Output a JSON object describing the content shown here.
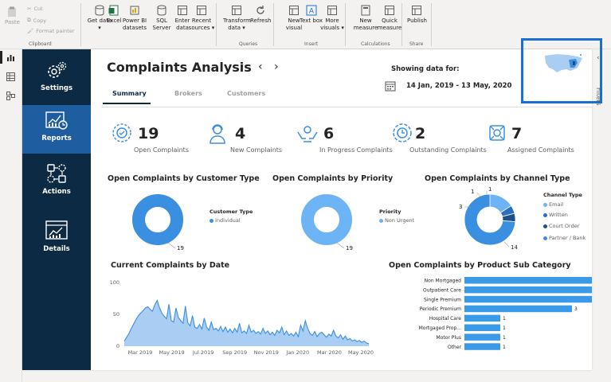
{
  "ribbon": {
    "clipboard": {
      "paste": "Paste",
      "cut": "Cut",
      "copy": "Copy",
      "format_painter": "Format painter",
      "group": "Clipboard"
    },
    "data_buttons": [
      {
        "label": "Get data ▾",
        "icon": "database-icon"
      },
      {
        "label": "Excel",
        "icon": "excel-icon"
      },
      {
        "label": "Power BI datasets",
        "icon": "powerbi-datasets-icon"
      },
      {
        "label": "SQL Server",
        "icon": "sql-server-icon"
      },
      {
        "label": "Enter data",
        "icon": "table-icon"
      },
      {
        "label": "Recent sources ▾",
        "icon": "recent-sources-icon"
      }
    ],
    "queries_buttons": [
      {
        "label": "Transform data ▾",
        "icon": "transform-icon"
      },
      {
        "label": "Refresh",
        "icon": "refresh-icon"
      }
    ],
    "queries_group": "Queries",
    "insert_buttons": [
      {
        "label": "New visual",
        "icon": "new-visual-icon"
      },
      {
        "label": "Text box",
        "icon": "text-box-icon"
      },
      {
        "label": "More visuals ▾",
        "icon": "more-visuals-icon"
      }
    ],
    "insert_group": "Insert",
    "calc_buttons": [
      {
        "label": "New measure",
        "icon": "calculator-icon"
      },
      {
        "label": "Quick measure",
        "icon": "quick-measure-icon"
      }
    ],
    "calc_group": "Calculations",
    "share_buttons": [
      {
        "label": "Publish",
        "icon": "publish-icon"
      }
    ],
    "share_group": "Share"
  },
  "right_rail": {
    "filters": "Filters"
  },
  "sidebar": {
    "items": [
      {
        "label": "Settings",
        "icon": "gears-icon"
      },
      {
        "label": "Reports",
        "icon": "report-chart-icon"
      },
      {
        "label": "Actions",
        "icon": "actions-icon"
      },
      {
        "label": "Details",
        "icon": "details-icon"
      }
    ]
  },
  "header": {
    "title": "Complaints Analysis",
    "tabs": [
      "Summary",
      "Brokers",
      "Customers"
    ],
    "showing_label": "Showing data for:",
    "date_range": "14 Jan, 2019 - 13 May, 2020"
  },
  "kpis": [
    {
      "value": "19",
      "label": "Open Complaints",
      "icon": "open-complaints-icon"
    },
    {
      "value": "4",
      "label": "New Complaints",
      "icon": "person-headset-icon"
    },
    {
      "value": "6",
      "label": "In Progress Complaints",
      "icon": "hands-icon"
    },
    {
      "value": "2",
      "label": "Outstanding Complaints",
      "icon": "clock-cycle-icon"
    },
    {
      "value": "7",
      "label": "Assigned Complaints",
      "icon": "assigned-icon"
    }
  ],
  "colors": {
    "accent": "#3b8fe0",
    "navy": "#0d2a45",
    "active_nav": "#1f5da1",
    "dark_blue": "#1c4f8c",
    "mid_blue": "#2a6fc0",
    "bar": "#3b9ae8"
  },
  "chart_data": [
    {
      "type": "pie",
      "title": "Open Complaints by Customer Type",
      "legend_title": "Customer Type",
      "labels": [
        "Individual"
      ],
      "values": [
        19
      ],
      "data_labels": [
        "19"
      ]
    },
    {
      "type": "pie",
      "title": "Open Complaints by Priority",
      "legend_title": "Priority",
      "labels": [
        "Non Urgent"
      ],
      "values": [
        19
      ],
      "data_labels": [
        "19"
      ]
    },
    {
      "type": "pie",
      "title": "Open Complaints by Channel Type",
      "legend_title": "Channel Type",
      "labels": [
        "Email",
        "Written",
        "Court Order",
        "Partner / Bank"
      ],
      "values": [
        3,
        1,
        1,
        14
      ],
      "data_labels": [
        "3",
        "1",
        "1",
        "14"
      ]
    },
    {
      "type": "area",
      "title": "Current Complaints by Date",
      "x_ticks": [
        "Mar 2019",
        "May 2019",
        "Jul 2019",
        "Sep 2019",
        "Nov 2019",
        "Jan 2020",
        "Mar 2020",
        "May 2020"
      ],
      "y_ticks": [
        "100",
        "50",
        "0"
      ],
      "ylim": [
        0,
        110
      ],
      "series": [
        {
          "values": [
            8,
            14,
            20,
            28,
            35,
            42,
            48,
            52,
            56,
            60,
            62,
            58,
            55,
            65,
            72,
            60,
            52,
            47,
            43,
            66,
            40,
            38,
            60,
            45,
            40,
            36,
            63,
            37,
            32,
            48,
            30,
            28,
            34,
            27,
            44,
            30,
            25,
            38,
            26,
            28,
            24,
            31,
            23,
            30,
            22,
            27,
            21,
            28,
            22,
            36,
            21,
            24,
            20,
            33,
            22,
            25,
            20,
            23,
            19,
            28,
            20,
            24,
            18,
            22,
            17,
            25,
            21,
            30,
            18,
            24,
            17,
            20,
            16,
            22,
            15,
            33,
            24,
            40,
            28,
            20,
            17,
            23,
            15,
            20,
            22,
            18,
            14,
            19,
            16,
            25,
            16,
            13,
            18,
            11,
            16,
            10,
            12,
            8,
            10,
            7,
            9,
            6,
            8,
            5,
            4
          ]
        }
      ]
    },
    {
      "type": "bar",
      "orientation": "horizontal",
      "title": "Open Complaints by Product Sub Category",
      "categories": [
        "Non Mortgaged",
        "Outpatient Care",
        "Single Premium",
        "Periodic Premium",
        "Hospital Care",
        "Mortgaged Prop...",
        "Motor Plus",
        "Other"
      ],
      "values": [
        4,
        4,
        4,
        3,
        1,
        1,
        1,
        1
      ],
      "xlim": [
        0,
        4
      ]
    }
  ]
}
